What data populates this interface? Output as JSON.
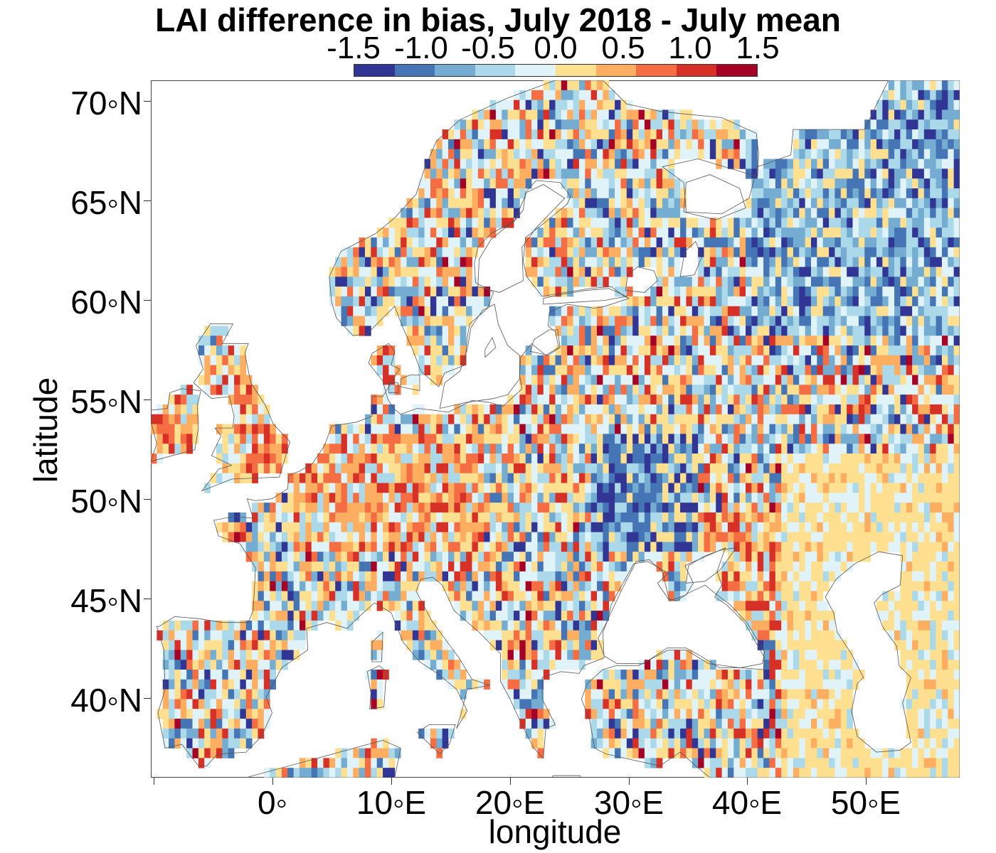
{
  "title": "LAI difference in bias, July 2018 - July mean",
  "colorbar": {
    "labels": [
      "-1.5",
      "-1.0",
      "-0.5",
      "0.0",
      "0.5",
      "1.0",
      "1.5"
    ],
    "colors": [
      "#313695",
      "#4575b4",
      "#74add1",
      "#abd9e9",
      "#e0f3f8",
      "#fee090",
      "#fdae61",
      "#f46d43",
      "#d73027",
      "#a50026"
    ]
  },
  "axes": {
    "xlabel": "longitude",
    "ylabel": "latitude",
    "xticks": [
      "0◦",
      "10◦E",
      "20◦E",
      "30◦E",
      "40◦E",
      "50◦E"
    ],
    "yticks": [
      "70◦N",
      "65◦N",
      "60◦N",
      "55◦N",
      "50◦N",
      "45◦N",
      "40◦N"
    ]
  },
  "map": {
    "region": "Europe",
    "lon_range": [
      -10,
      58
    ],
    "lat_range": [
      35.5,
      71
    ],
    "tick_lons": [
      0,
      10,
      20,
      30,
      40,
      50
    ],
    "tick_lats": [
      70,
      65,
      60,
      55,
      50,
      45,
      40
    ],
    "pattern": "mixed positive and negative differences; positive (orange/red) over British Isles, Denmark, France/Germany and around the Sea of Azov; negative (blue) over NW Russia and Ukraine; pale yellow over the Caspian/Central Asian steppe"
  }
}
